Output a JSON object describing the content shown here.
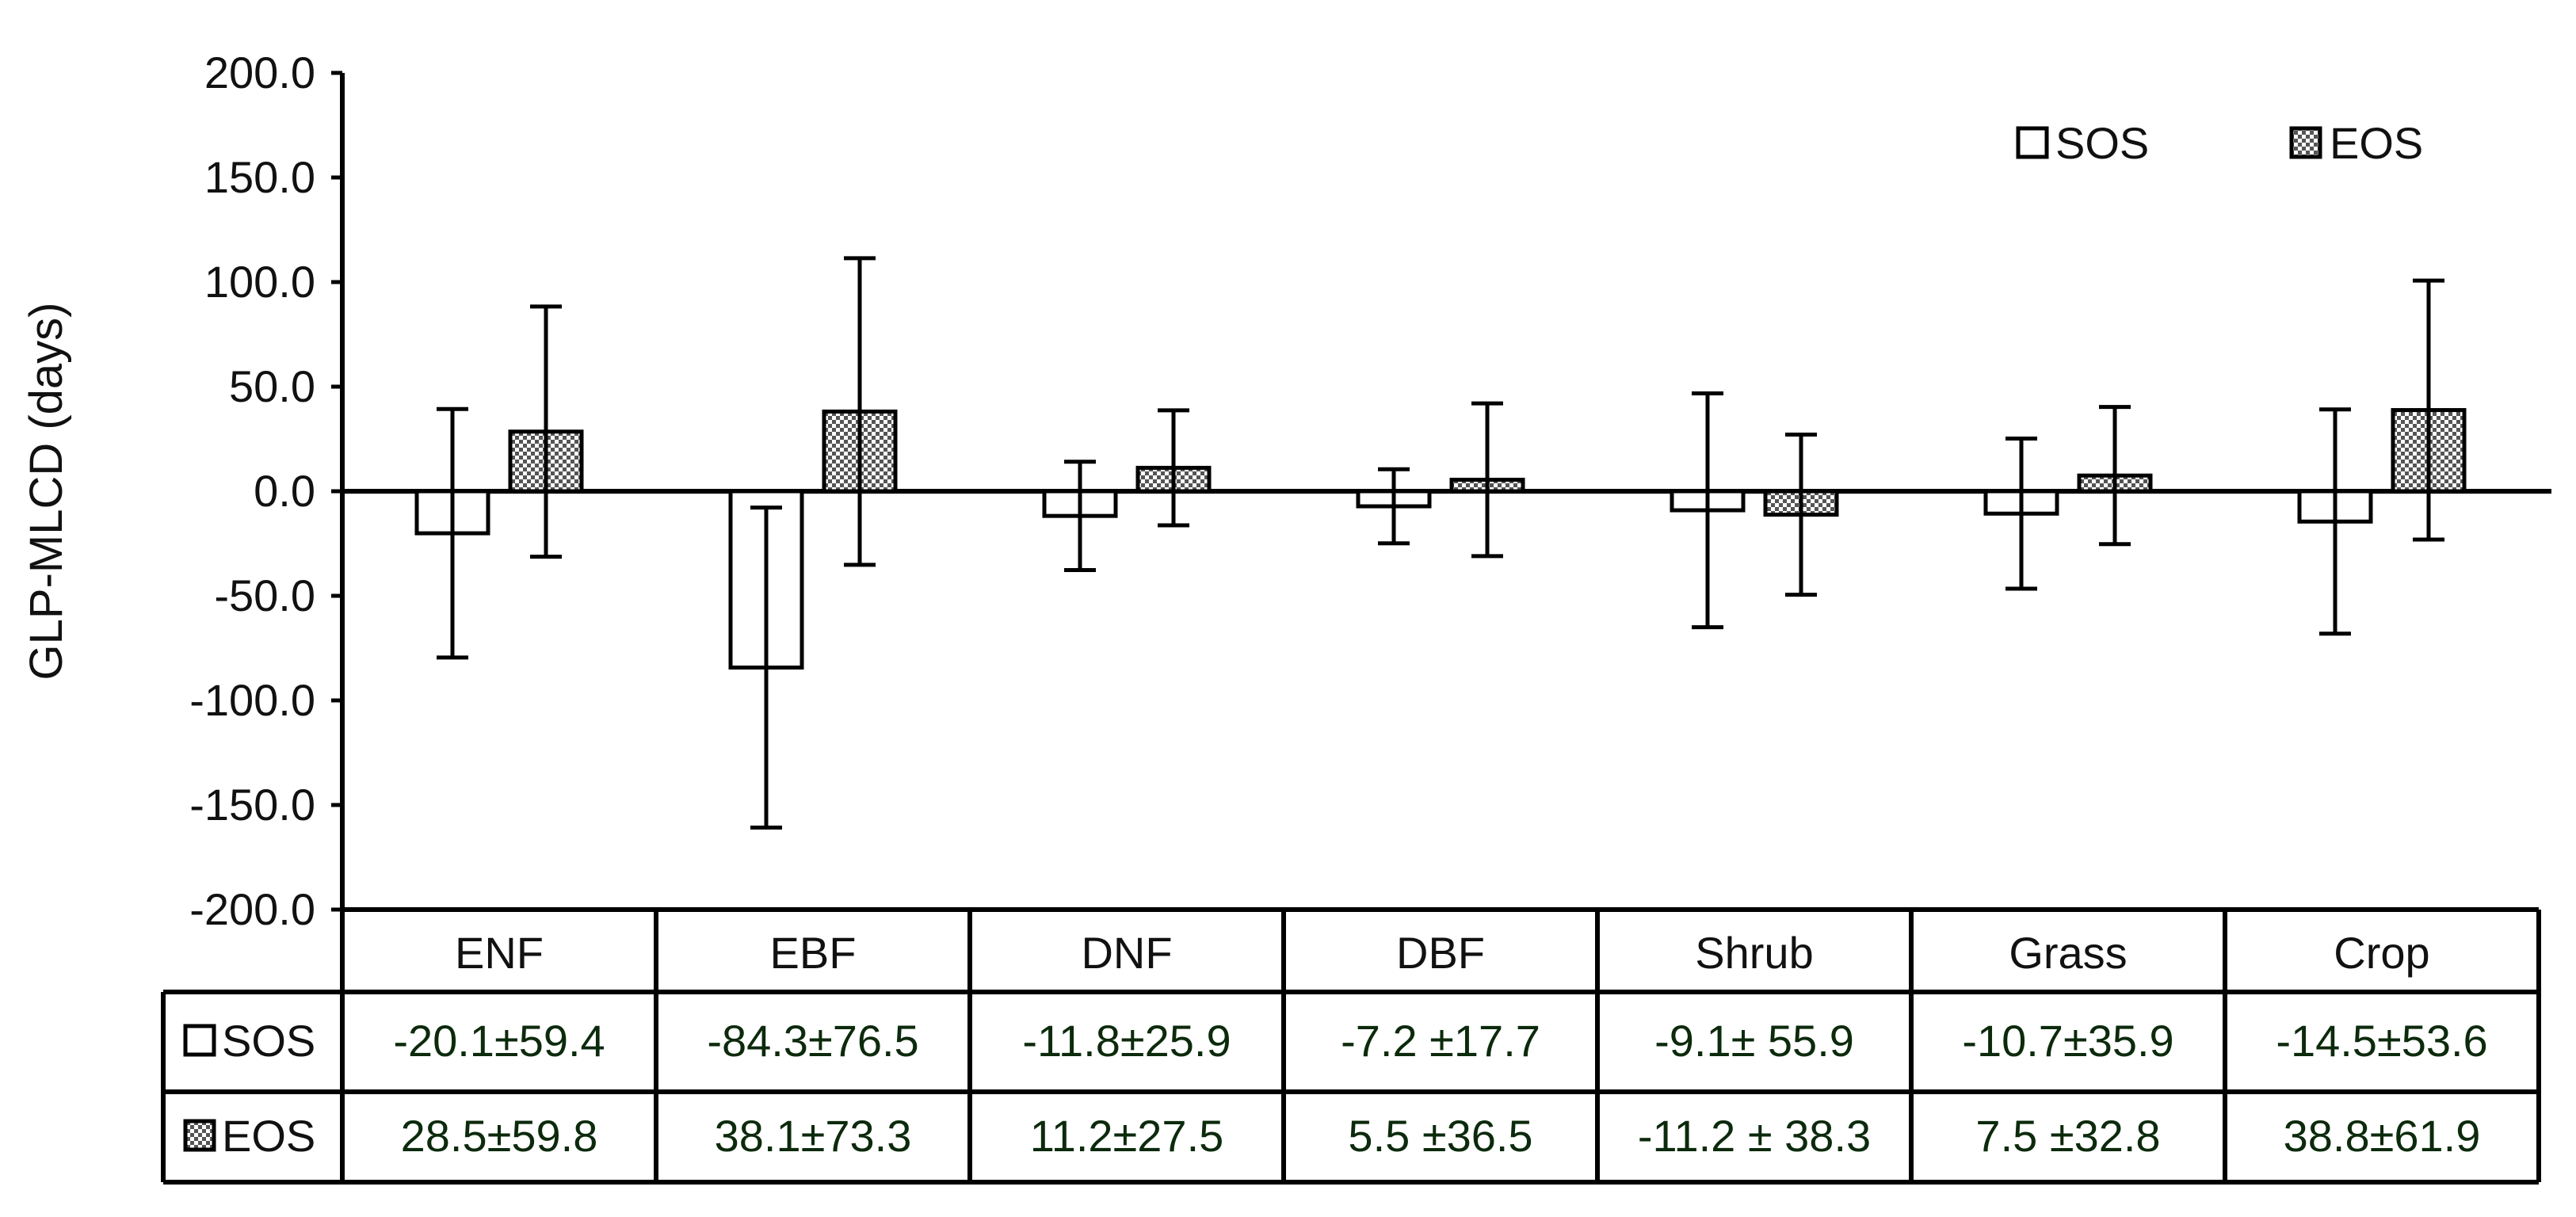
{
  "chart_data": {
    "type": "bar",
    "ylabel": "GLP-MLCD (days)",
    "ylim": [
      -200,
      200
    ],
    "y_ticks": [
      "200.0",
      "150.0",
      "100.0",
      "50.0",
      "0.0",
      "-50.0",
      "-100.0",
      "-150.0",
      "-200.0"
    ],
    "y_tick_values": [
      200,
      150,
      100,
      50,
      0,
      -50,
      -100,
      -150,
      -200
    ],
    "legend_position": "top-right",
    "categories": [
      "ENF",
      "EBF",
      "DNF",
      "DBF",
      "Shrub",
      "Grass",
      "Crop"
    ],
    "series": [
      {
        "name": "SOS",
        "pattern": "empty",
        "values": [
          -20.1,
          -84.3,
          -11.8,
          -7.2,
          -9.1,
          -10.7,
          -14.5
        ],
        "errors": [
          59.4,
          76.5,
          25.9,
          17.7,
          55.9,
          35.9,
          53.6
        ],
        "cells": [
          "-20.1±59.4",
          "-84.3±76.5",
          "-11.8±25.9",
          "-7.2 ±17.7",
          "-9.1± 55.9",
          "-10.7±35.9",
          "-14.5±53.6"
        ]
      },
      {
        "name": "EOS",
        "pattern": "checkered",
        "values": [
          28.5,
          38.1,
          11.2,
          5.5,
          -11.2,
          7.5,
          38.8
        ],
        "errors": [
          59.8,
          73.3,
          27.5,
          36.5,
          38.3,
          32.8,
          61.9
        ],
        "cells": [
          "28.5±59.8",
          "38.1±73.3",
          "11.2±27.5",
          "5.5 ±36.5",
          "-11.2 ± 38.3",
          "7.5 ±32.8",
          "38.8±61.9"
        ]
      }
    ],
    "colors": {
      "line": "#000000",
      "checker_dark": "#555555",
      "checker_light": "#ffffff"
    }
  }
}
